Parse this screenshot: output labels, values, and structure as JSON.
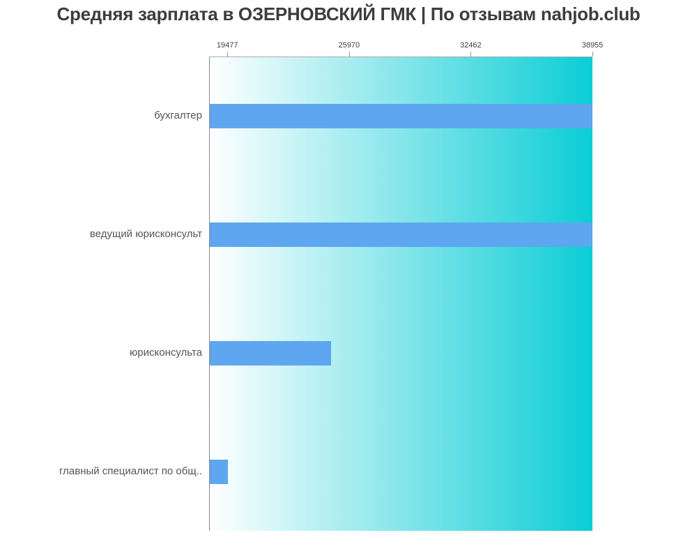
{
  "title": "Средняя зарплата в ОЗЕРНОВСКИЙ ГМК | По отзывам nahjob.club",
  "colors": {
    "bar": "#5ea6ef",
    "gradient_start": "#ffffff",
    "gradient_end": "#0bcdd5",
    "title_text": "#3d3d3d",
    "axis_line": "#8a8a8a",
    "tick_mark": "#999999",
    "tick_label": "#3f3f3f",
    "category_label": "#555555"
  },
  "chart_data": {
    "type": "bar",
    "orientation": "horizontal",
    "title": "Средняя зарплата в ОЗЕРНОВСКИЙ ГМК | По отзывам nahjob.club",
    "categories": [
      "бухгалтер",
      "ведущий юрисконсульт",
      "юрисконсульта",
      "главный специалист по общ.."
    ],
    "values": [
      38955,
      38955,
      25000,
      19477
    ],
    "x_ticks": [
      19477,
      25970,
      32462,
      38955
    ],
    "xlim": [
      18503,
      38955
    ],
    "xlabel": "",
    "ylabel": "",
    "legend": false,
    "grid": false,
    "x_ticks_position": "top",
    "plot_background": "horizontal gradient white to teal"
  }
}
